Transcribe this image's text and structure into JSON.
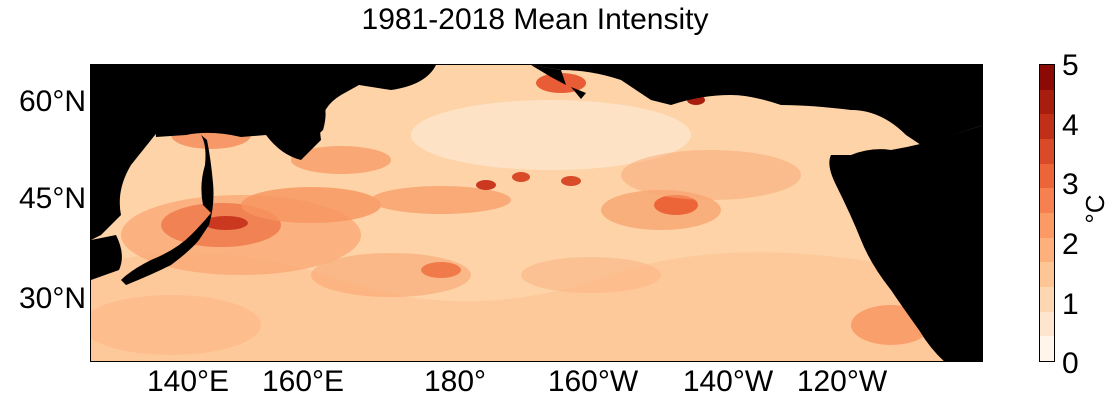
{
  "figure": {
    "title": "1981-2018 Mean Intensity"
  },
  "map": {
    "extent": {
      "lon_min": 125,
      "lon_max": 255,
      "lat_min": 20,
      "lat_max": 65
    },
    "land_color": "#000000",
    "y_ticks": [
      {
        "label": "60°N",
        "lat": 60
      },
      {
        "label": "45°N",
        "lat": 45
      },
      {
        "label": "30°N",
        "lat": 30
      }
    ],
    "x_ticks": [
      {
        "label": "140°E",
        "lon": 140
      },
      {
        "label": "160°E",
        "lon": 160
      },
      {
        "label": "180°",
        "lon": 180
      },
      {
        "label": "160°W",
        "lon": 200
      },
      {
        "label": "140°W",
        "lon": 220
      },
      {
        "label": "120°W",
        "lon": 240
      }
    ]
  },
  "colorbar": {
    "unit": "°C",
    "min": 0,
    "max": 5,
    "tick_labels": [
      "0",
      "1",
      "2",
      "3",
      "4",
      "5"
    ],
    "colors": [
      "#fff5eb",
      "#fee6ce",
      "#fdd7b1",
      "#fdc694",
      "#fdb07c",
      "#fc9a66",
      "#f6804f",
      "#ec6538",
      "#d94a28",
      "#c03018",
      "#a71e0e",
      "#8b0a06"
    ]
  }
}
